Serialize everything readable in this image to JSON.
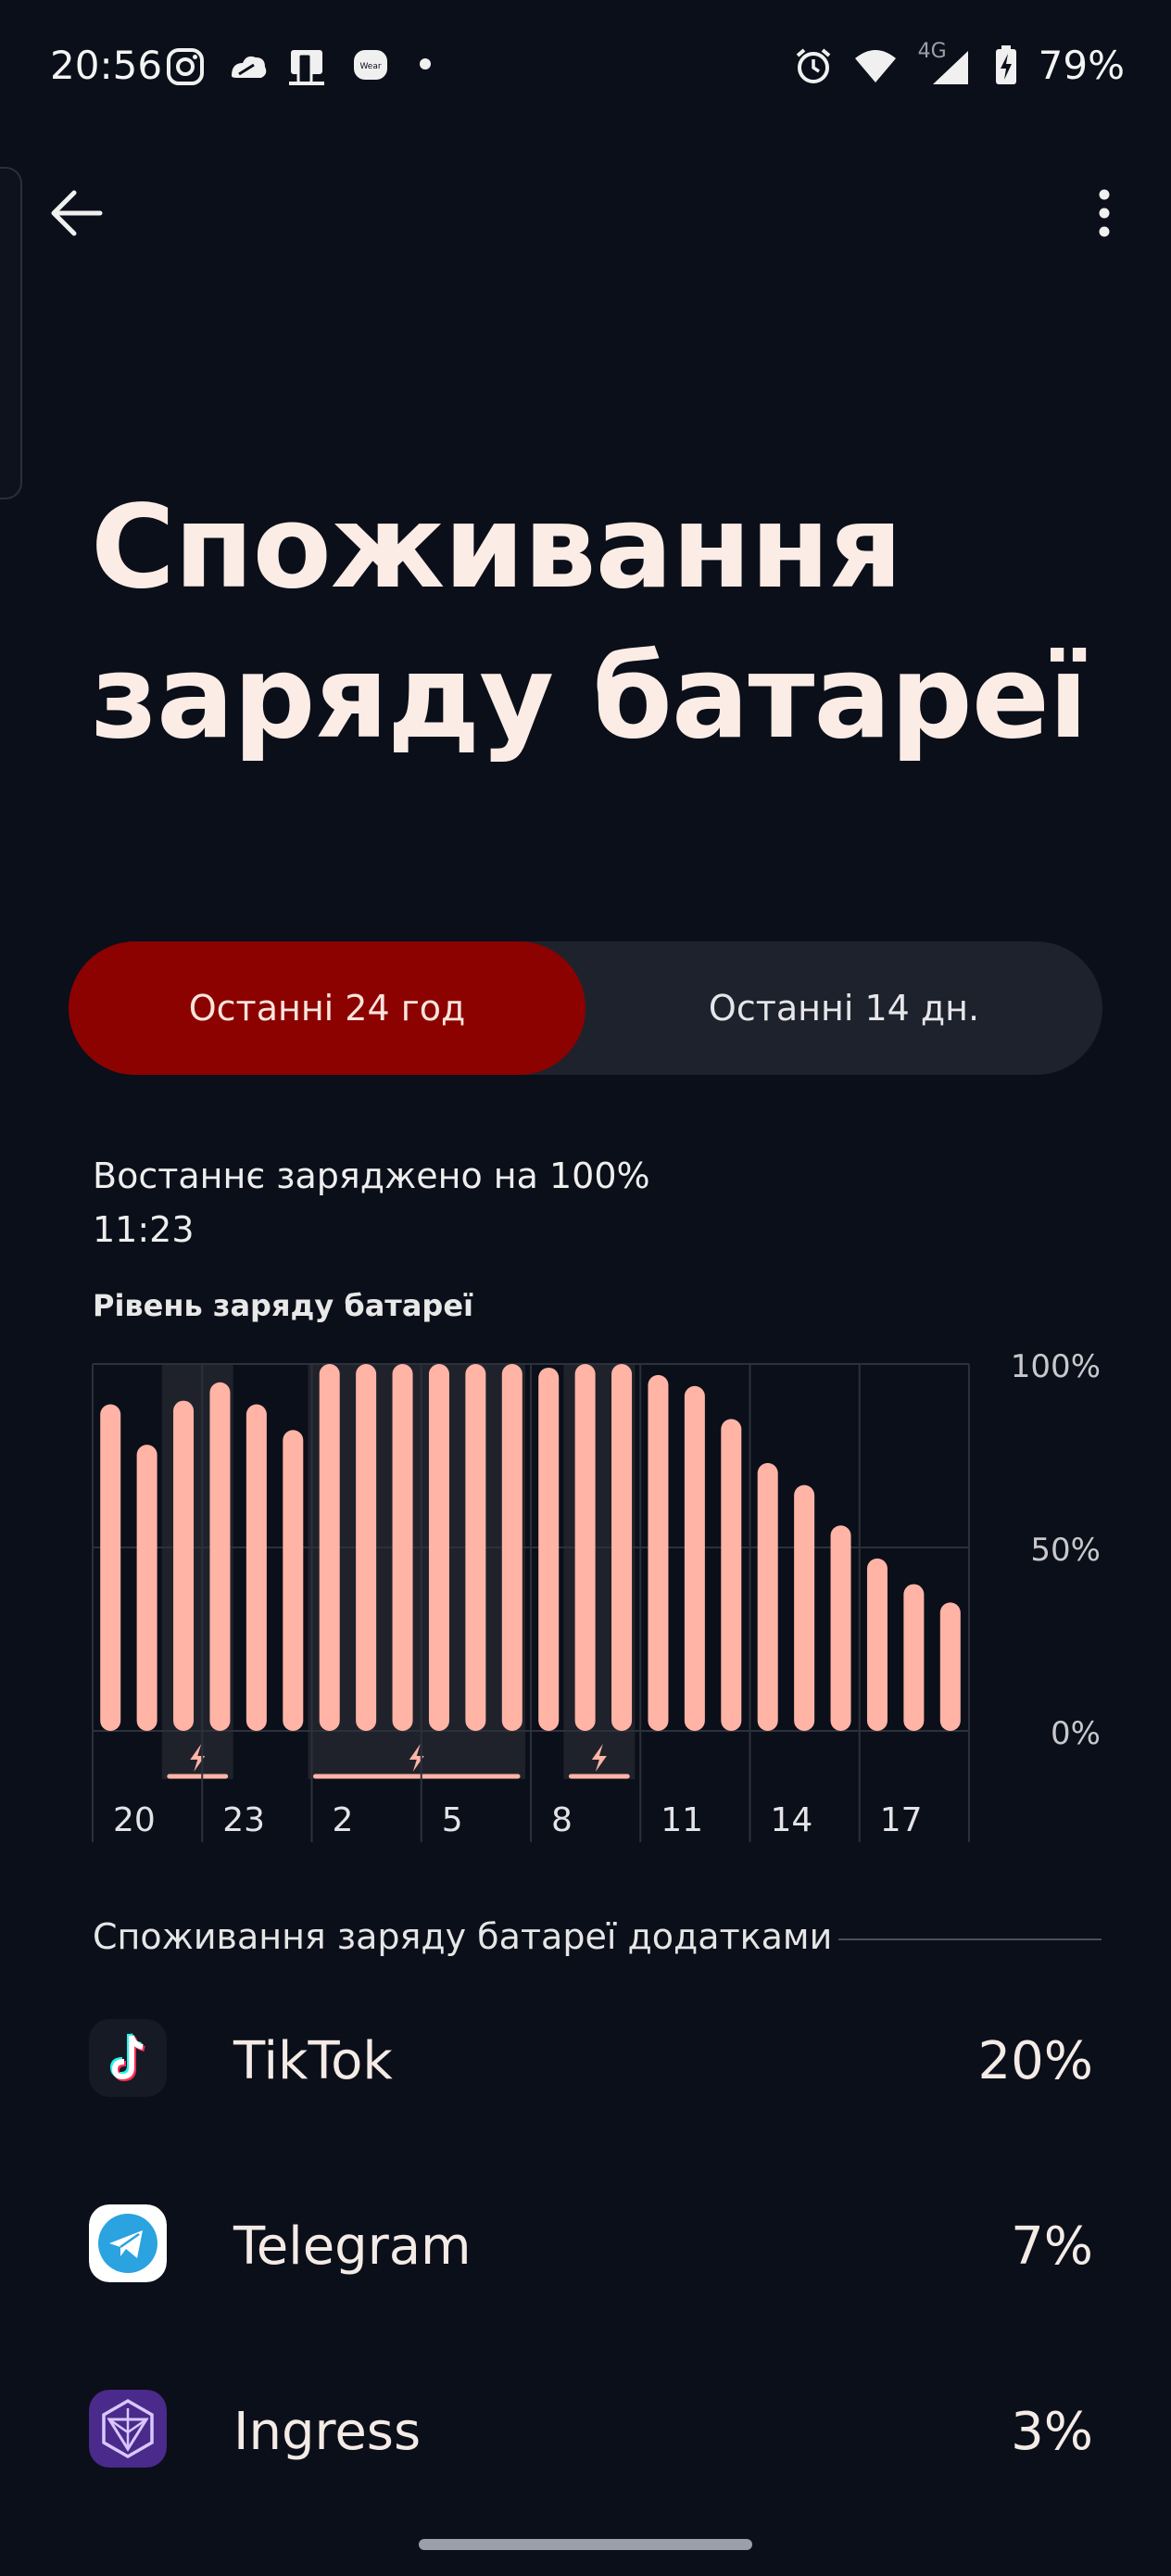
{
  "status_bar": {
    "time": "20:56",
    "network": "4G",
    "battery": "79%",
    "icons": [
      "instagram-icon",
      "cloud-icon",
      "device-icon",
      "wear-icon",
      "dot-icon",
      "alarm-icon",
      "wifi-icon",
      "signal-icon",
      "battery-charging-icon"
    ],
    "wear_label": "Wear"
  },
  "header": {
    "title": "Споживання заряду батареї"
  },
  "range_tabs": [
    {
      "label": "Останні 24 год",
      "selected": true
    },
    {
      "label": "Останні 14 дн.",
      "selected": false
    }
  ],
  "last_charged": {
    "line1": "Востаннє заряджено на 100%",
    "line2": "11:23"
  },
  "chart_label": "Рівень заряду батареї",
  "chart_data": {
    "type": "bar",
    "title": "Рівень заряду батареї",
    "y_ticks": [
      "100%",
      "50%",
      "0%"
    ],
    "ylim": [
      0,
      100
    ],
    "x_ticks": [
      "20",
      "23",
      "2",
      "5",
      "8",
      "11",
      "14",
      "17"
    ],
    "values": [
      89,
      78,
      90,
      95,
      89,
      82,
      100,
      100,
      100,
      100,
      100,
      100,
      99,
      100,
      100,
      97,
      94,
      85,
      73,
      67,
      56,
      47,
      40,
      35
    ],
    "charging_periods": [
      [
        2,
        3
      ],
      [
        6,
        11
      ],
      [
        13,
        14
      ]
    ],
    "grid": true,
    "bar_color": "#ffb4a6"
  },
  "app_usage": {
    "header": "Споживання заряду батареї додатками",
    "apps": [
      {
        "name": "TikTok",
        "percent": "20%",
        "icon": "tiktok-icon"
      },
      {
        "name": "Telegram",
        "percent": "7%",
        "icon": "telegram-icon"
      },
      {
        "name": "Ingress",
        "percent": "3%",
        "icon": "ingress-icon"
      }
    ]
  }
}
